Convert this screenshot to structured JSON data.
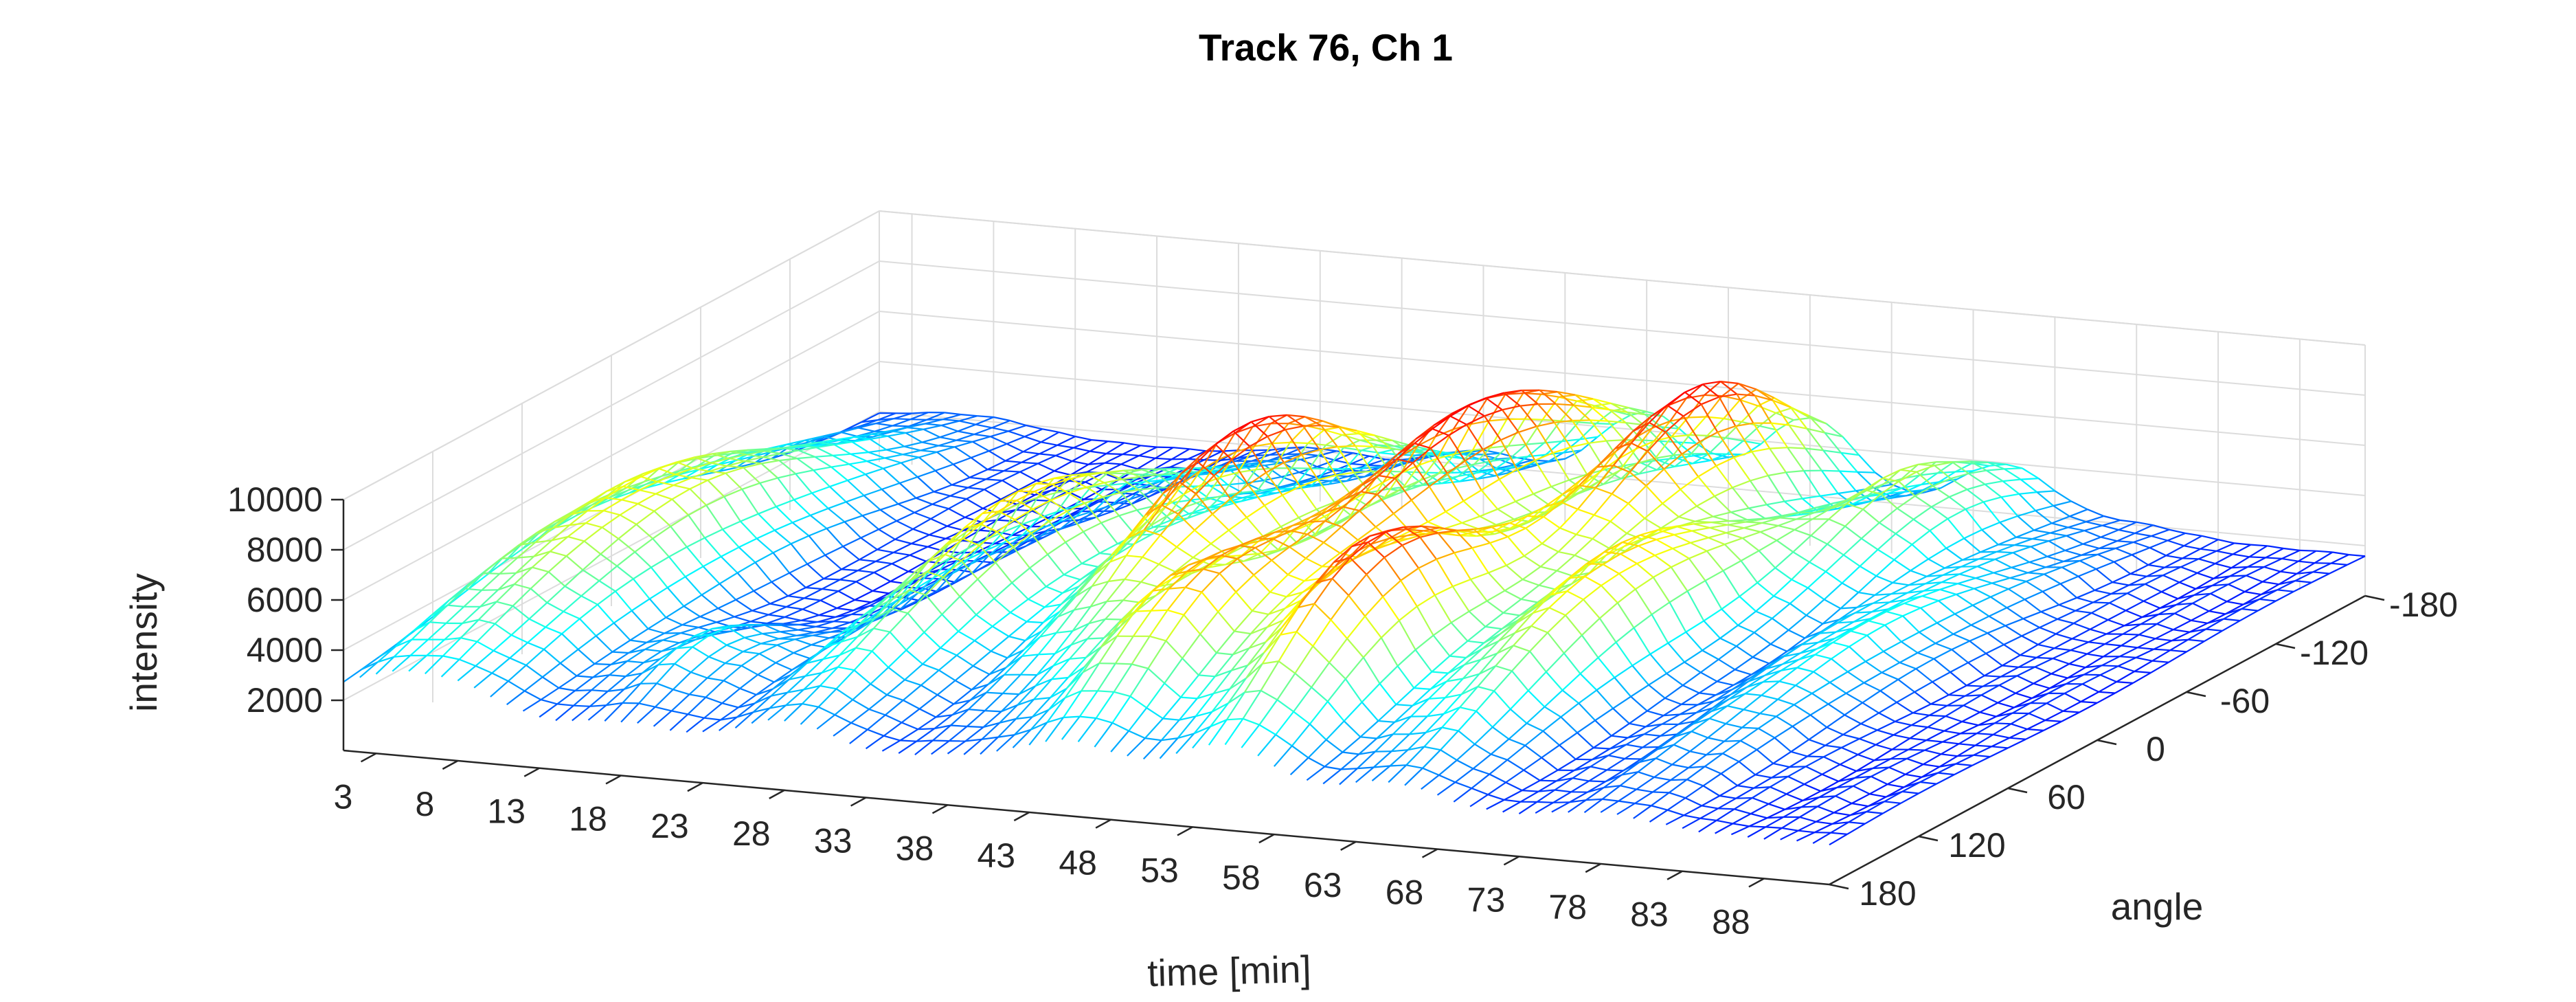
{
  "chart_data": {
    "type": "mesh3d",
    "title": "Track 76, Ch 1",
    "xlabel": "time [min]",
    "ylabel": "angle",
    "zlabel": "intensity",
    "x_ticks": [
      "3",
      "8",
      "13",
      "18",
      "23",
      "28",
      "33",
      "38",
      "43",
      "48",
      "53",
      "58",
      "63",
      "68",
      "73",
      "78",
      "83",
      "88"
    ],
    "y_ticks": [
      "-180",
      "-120",
      "-60",
      "0",
      "60",
      "120",
      "180"
    ],
    "z_ticks": [
      "2000",
      "4000",
      "6000",
      "8000",
      "10000"
    ],
    "xlim": [
      1,
      92
    ],
    "ylim": [
      -180,
      180
    ],
    "zlim": [
      0,
      10000
    ],
    "colormap": "jet",
    "grid": true,
    "ridges": [
      {
        "time": 3,
        "angle": 40,
        "peak": 5200,
        "width_angle": 170
      },
      {
        "time": 8,
        "angle": 30,
        "peak": 5600,
        "width_angle": 170
      },
      {
        "time": 18,
        "angle": 120,
        "peak": 3900,
        "width_angle": 60
      },
      {
        "time": 28,
        "angle": 20,
        "peak": 7500,
        "width_angle": 150
      },
      {
        "time": 38,
        "angle": -20,
        "peak": 9800,
        "width_angle": 130
      },
      {
        "time": 45,
        "angle": 100,
        "peak": 6700,
        "width_angle": 80
      },
      {
        "time": 48,
        "angle": -60,
        "peak": 10000,
        "width_angle": 150
      },
      {
        "time": 55,
        "angle": 80,
        "peak": 9200,
        "width_angle": 100
      },
      {
        "time": 58,
        "angle": -100,
        "peak": 9700,
        "width_angle": 110
      },
      {
        "time": 65,
        "angle": 30,
        "peak": 7400,
        "width_angle": 130
      },
      {
        "time": 70,
        "angle": -120,
        "peak": 5900,
        "width_angle": 100
      },
      {
        "time": 78,
        "angle": 0,
        "peak": 4200,
        "width_angle": 160
      }
    ],
    "baseline": 1600
  }
}
